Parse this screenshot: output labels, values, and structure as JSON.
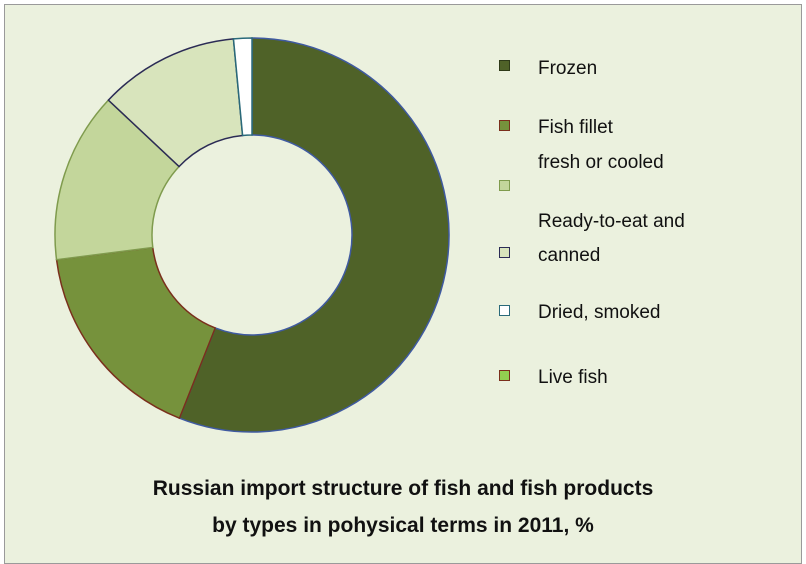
{
  "chart_data": {
    "type": "donut",
    "title_lines": [
      "Russian import structure of fish and fish products",
      "by types in pohysical terms in 2011, %"
    ],
    "slices": [
      {
        "name": "Frozen",
        "value": 56,
        "color": "#4f6228",
        "stroke": "#3f5aa0"
      },
      {
        "name": "Fish fillet fresh or cooled",
        "value": 17,
        "color": "#76923c",
        "stroke": "#7a2f1c"
      },
      {
        "name": "Ready-to-eat and canned",
        "value": 14,
        "color": "#c3d69b",
        "stroke": "#7f9b4d"
      },
      {
        "name": "Dried, smoked",
        "value": 11.5,
        "color": "#d8e4bc",
        "stroke": "#2b2b55"
      },
      {
        "name": "Live fish",
        "value": 1.5,
        "color": "#ffffff",
        "stroke": "#2a6a7a"
      }
    ],
    "legend_placement": "right"
  },
  "legend": {
    "frozen": "Frozen",
    "fillet_line1": "Fish fillet",
    "fillet_line2": "fresh or cooled",
    "ready_line1": "Ready-to-eat and",
    "ready_line2": "canned",
    "dried": "Dried, smoked",
    "live": "Live fish"
  },
  "colors": {
    "background": "#ebf1de",
    "frozen": "#4f6228",
    "fillet": "#76923c",
    "ready": "#c3d69b",
    "canned": "#d8e4bc",
    "dried": "#ffffff",
    "live": "#92d050"
  }
}
